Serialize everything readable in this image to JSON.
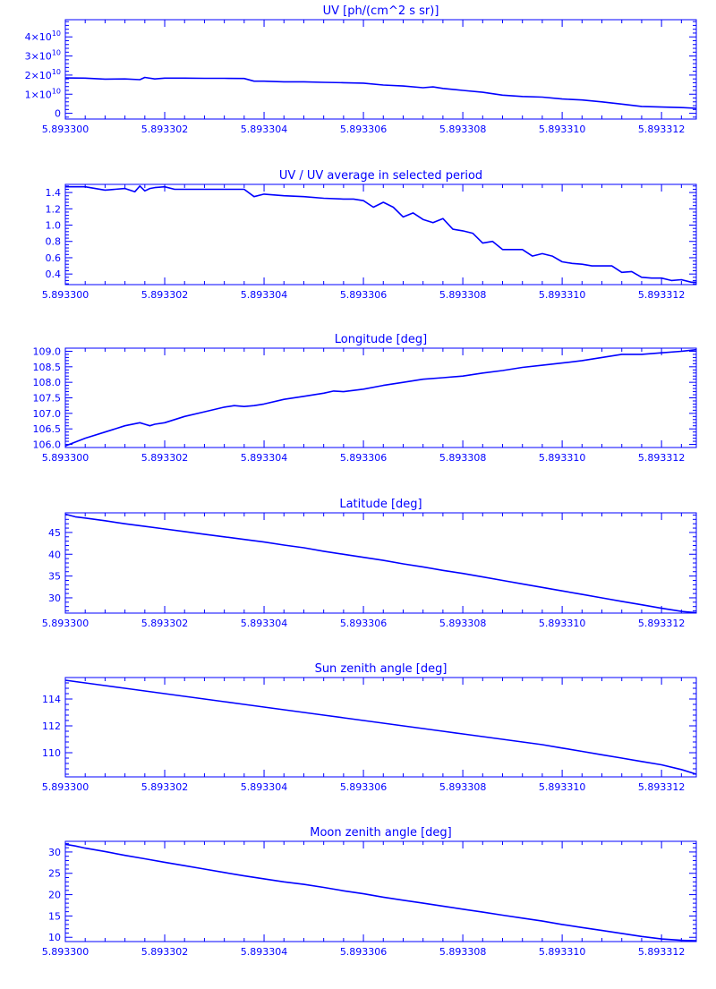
{
  "chart_data": [
    {
      "type": "line",
      "title": "UV [ph/(cm^2 s sr)]",
      "xlabel": "",
      "ylabel": "",
      "xlim": [
        5.8933,
        5.8933127
      ],
      "ylim": [
        -300000000,
        4900000000
      ],
      "x_ticks": [
        "5.893300",
        "5.893302",
        "5.893304",
        "5.893306",
        "5.893308",
        "5.893310",
        "5.893312"
      ],
      "y_ticks": [
        {
          "label_base": "0",
          "label_exp": "",
          "value": 0
        },
        {
          "label_base": "1×10",
          "label_exp": "10",
          "value": 1000000000
        },
        {
          "label_base": "2×10",
          "label_exp": "10",
          "value": 2000000000
        },
        {
          "label_base": "3×10",
          "label_exp": "10",
          "value": 3000000000
        },
        {
          "label_base": "4×10",
          "label_exp": "10",
          "value": 4000000000
        }
      ],
      "grid": false,
      "color": "#0000ff",
      "series": [
        {
          "x": [
            5.8933,
            5.8933004,
            5.8933008,
            5.8933012,
            5.8933015,
            5.8933016,
            5.8933018,
            5.893302,
            5.8933024,
            5.8933028,
            5.8933032,
            5.8933036,
            5.8933038,
            5.893304,
            5.8933044,
            5.8933048,
            5.8933052,
            5.8933056,
            5.893306,
            5.8933064,
            5.8933068,
            5.8933072,
            5.8933074,
            5.8933076,
            5.893308,
            5.8933084,
            5.8933088,
            5.8933092,
            5.8933096,
            5.89331,
            5.8933104,
            5.8933108,
            5.8933112,
            5.8933116,
            5.893312,
            5.8933124,
            5.8933127
          ],
          "y": [
            1850000000,
            1840000000,
            1790000000,
            1800000000,
            1760000000,
            1880000000,
            1800000000,
            1840000000,
            1840000000,
            1830000000,
            1830000000,
            1820000000,
            1680000000,
            1680000000,
            1650000000,
            1650000000,
            1620000000,
            1600000000,
            1580000000,
            1480000000,
            1430000000,
            1340000000,
            1380000000,
            1300000000,
            1200000000,
            1100000000,
            950000000,
            880000000,
            850000000,
            750000000,
            700000000,
            600000000,
            480000000,
            360000000,
            330000000,
            300000000,
            260000000
          ]
        }
      ]
    },
    {
      "type": "line",
      "title": "UV / UV average in selected period",
      "xlabel": "",
      "ylabel": "",
      "xlim": [
        5.8933,
        5.8933127
      ],
      "ylim": [
        0.27,
        1.5
      ],
      "x_ticks": [
        "5.893300",
        "5.893302",
        "5.893304",
        "5.893306",
        "5.893308",
        "5.893310",
        "5.893312"
      ],
      "y_ticks": [
        {
          "label_base": "0.4",
          "label_exp": "",
          "value": 0.4
        },
        {
          "label_base": "0.6",
          "label_exp": "",
          "value": 0.6
        },
        {
          "label_base": "0.8",
          "label_exp": "",
          "value": 0.8
        },
        {
          "label_base": "1.0",
          "label_exp": "",
          "value": 1.0
        },
        {
          "label_base": "1.2",
          "label_exp": "",
          "value": 1.2
        },
        {
          "label_base": "1.4",
          "label_exp": "",
          "value": 1.4
        }
      ],
      "grid": false,
      "color": "#0000ff",
      "series": [
        {
          "x": [
            5.8933,
            5.8933004,
            5.8933008,
            5.8933012,
            5.8933014,
            5.8933015,
            5.8933016,
            5.8933017,
            5.8933018,
            5.893302,
            5.8933022,
            5.8933024,
            5.8933028,
            5.8933032,
            5.8933036,
            5.8933038,
            5.893304,
            5.8933044,
            5.8933048,
            5.8933052,
            5.8933056,
            5.8933058,
            5.893306,
            5.8933062,
            5.8933064,
            5.8933066,
            5.8933068,
            5.893307,
            5.8933072,
            5.8933074,
            5.8933076,
            5.8933078,
            5.893308,
            5.8933082,
            5.8933084,
            5.8933086,
            5.8933088,
            5.893309,
            5.8933092,
            5.8933094,
            5.8933096,
            5.8933098,
            5.89331,
            5.8933102,
            5.8933104,
            5.8933106,
            5.8933108,
            5.893311,
            5.8933112,
            5.8933114,
            5.8933116,
            5.8933118,
            5.893312,
            5.8933122,
            5.8933124,
            5.8933126,
            5.8933127
          ],
          "y": [
            1.47,
            1.47,
            1.43,
            1.45,
            1.41,
            1.48,
            1.42,
            1.45,
            1.46,
            1.47,
            1.44,
            1.44,
            1.44,
            1.44,
            1.44,
            1.35,
            1.38,
            1.36,
            1.35,
            1.33,
            1.32,
            1.32,
            1.3,
            1.22,
            1.28,
            1.22,
            1.1,
            1.15,
            1.07,
            1.03,
            1.08,
            0.95,
            0.93,
            0.9,
            0.78,
            0.8,
            0.7,
            0.7,
            0.7,
            0.62,
            0.65,
            0.62,
            0.55,
            0.53,
            0.52,
            0.5,
            0.5,
            0.5,
            0.42,
            0.43,
            0.36,
            0.35,
            0.35,
            0.32,
            0.33,
            0.3,
            0.3
          ]
        }
      ]
    },
    {
      "type": "line",
      "title": "Longitude [deg]",
      "xlabel": "",
      "ylabel": "",
      "xlim": [
        5.8933,
        5.8933127
      ],
      "ylim": [
        105.9,
        109.1
      ],
      "x_ticks": [
        "5.893300",
        "5.893302",
        "5.893304",
        "5.893306",
        "5.893308",
        "5.893310",
        "5.893312"
      ],
      "y_ticks": [
        {
          "label_base": "106.0",
          "label_exp": "",
          "value": 106.0
        },
        {
          "label_base": "106.5",
          "label_exp": "",
          "value": 106.5
        },
        {
          "label_base": "107.0",
          "label_exp": "",
          "value": 107.0
        },
        {
          "label_base": "107.5",
          "label_exp": "",
          "value": 107.5
        },
        {
          "label_base": "108.0",
          "label_exp": "",
          "value": 108.0
        },
        {
          "label_base": "108.5",
          "label_exp": "",
          "value": 108.5
        },
        {
          "label_base": "109.0",
          "label_exp": "",
          "value": 109.0
        }
      ],
      "grid": false,
      "color": "#0000ff",
      "series": [
        {
          "x": [
            5.8933,
            5.8933004,
            5.8933008,
            5.8933012,
            5.8933015,
            5.8933016,
            5.8933017,
            5.8933018,
            5.893302,
            5.8933024,
            5.8933028,
            5.8933032,
            5.8933034,
            5.8933036,
            5.8933038,
            5.893304,
            5.8933044,
            5.8933048,
            5.8933052,
            5.8933054,
            5.8933056,
            5.893306,
            5.8933064,
            5.8933068,
            5.8933072,
            5.8933076,
            5.893308,
            5.8933084,
            5.8933088,
            5.8933092,
            5.8933096,
            5.89331,
            5.8933104,
            5.8933108,
            5.8933112,
            5.8933116,
            5.893312,
            5.8933124,
            5.8933127
          ],
          "y": [
            105.95,
            106.2,
            106.4,
            106.6,
            106.7,
            106.65,
            106.6,
            106.65,
            106.7,
            106.9,
            107.05,
            107.2,
            107.25,
            107.22,
            107.25,
            107.3,
            107.45,
            107.55,
            107.65,
            107.72,
            107.7,
            107.78,
            107.9,
            108.0,
            108.1,
            108.15,
            108.2,
            108.3,
            108.38,
            108.48,
            108.55,
            108.62,
            108.7,
            108.8,
            108.9,
            108.9,
            108.95,
            109.0,
            109.05
          ]
        }
      ]
    },
    {
      "type": "line",
      "title": "Latitude [deg]",
      "xlabel": "",
      "ylabel": "",
      "xlim": [
        5.8933,
        5.8933127
      ],
      "ylim": [
        26.5,
        49.5
      ],
      "x_ticks": [
        "5.893300",
        "5.893302",
        "5.893304",
        "5.893306",
        "5.893308",
        "5.893310",
        "5.893312"
      ],
      "y_ticks": [
        {
          "label_base": "30",
          "label_exp": "",
          "value": 30
        },
        {
          "label_base": "35",
          "label_exp": "",
          "value": 35
        },
        {
          "label_base": "40",
          "label_exp": "",
          "value": 40
        },
        {
          "label_base": "45",
          "label_exp": "",
          "value": 45
        }
      ],
      "grid": false,
      "color": "#0000ff",
      "series": [
        {
          "x": [
            5.8933,
            5.8933002,
            5.8933004,
            5.8933008,
            5.8933012,
            5.8933016,
            5.893302,
            5.8933024,
            5.8933028,
            5.8933032,
            5.8933036,
            5.893304,
            5.8933044,
            5.8933048,
            5.8933052,
            5.8933056,
            5.893306,
            5.8933064,
            5.8933068,
            5.8933072,
            5.8933076,
            5.893308,
            5.8933084,
            5.8933088,
            5.8933092,
            5.8933096,
            5.89331,
            5.8933104,
            5.8933108,
            5.8933112,
            5.8933116,
            5.893312,
            5.8933124,
            5.8933127
          ],
          "y": [
            49.2,
            48.6,
            48.3,
            47.7,
            47.0,
            46.4,
            45.8,
            45.2,
            44.6,
            44.0,
            43.4,
            42.8,
            42.1,
            41.5,
            40.7,
            40.0,
            39.3,
            38.6,
            37.8,
            37.1,
            36.3,
            35.6,
            34.8,
            34.0,
            33.2,
            32.4,
            31.6,
            30.8,
            30.0,
            29.2,
            28.4,
            27.6,
            26.9,
            26.6
          ]
        }
      ]
    },
    {
      "type": "line",
      "title": "Sun zenith angle [deg]",
      "xlabel": "",
      "ylabel": "",
      "xlim": [
        5.8933,
        5.8933127
      ],
      "ylim": [
        108.2,
        115.6
      ],
      "x_ticks": [
        "5.893300",
        "5.893302",
        "5.893304",
        "5.893306",
        "5.893308",
        "5.893310",
        "5.893312"
      ],
      "y_ticks": [
        {
          "label_base": "110",
          "label_exp": "",
          "value": 110
        },
        {
          "label_base": "112",
          "label_exp": "",
          "value": 112
        },
        {
          "label_base": "114",
          "label_exp": "",
          "value": 114
        }
      ],
      "grid": false,
      "color": "#0000ff",
      "series": [
        {
          "x": [
            5.8933,
            5.8933004,
            5.8933008,
            5.8933012,
            5.8933016,
            5.893302,
            5.8933024,
            5.8933028,
            5.8933032,
            5.8933036,
            5.893304,
            5.8933044,
            5.8933048,
            5.8933052,
            5.8933056,
            5.893306,
            5.8933064,
            5.8933068,
            5.8933072,
            5.8933076,
            5.893308,
            5.8933084,
            5.8933088,
            5.8933092,
            5.8933096,
            5.89331,
            5.8933104,
            5.8933108,
            5.8933112,
            5.8933116,
            5.893312,
            5.8933124,
            5.8933127
          ],
          "y": [
            115.4,
            115.2,
            115.0,
            114.8,
            114.6,
            114.4,
            114.2,
            114.0,
            113.8,
            113.6,
            113.4,
            113.2,
            113.0,
            112.8,
            112.6,
            112.4,
            112.2,
            112.0,
            111.8,
            111.6,
            111.4,
            111.2,
            111.0,
            110.8,
            110.6,
            110.35,
            110.1,
            109.85,
            109.6,
            109.35,
            109.1,
            108.75,
            108.4
          ]
        }
      ]
    },
    {
      "type": "line",
      "title": "Moon zenith angle [deg]",
      "xlabel": "",
      "ylabel": "",
      "xlim": [
        5.8933,
        5.8933127
      ],
      "ylim": [
        9,
        32.5
      ],
      "x_ticks": [
        "5.893300",
        "5.893302",
        "5.893304",
        "5.893306",
        "5.893308",
        "5.893310",
        "5.893312"
      ],
      "y_ticks": [
        {
          "label_base": "10",
          "label_exp": "",
          "value": 10
        },
        {
          "label_base": "15",
          "label_exp": "",
          "value": 15
        },
        {
          "label_base": "20",
          "label_exp": "",
          "value": 20
        },
        {
          "label_base": "25",
          "label_exp": "",
          "value": 25
        },
        {
          "label_base": "30",
          "label_exp": "",
          "value": 30
        }
      ],
      "grid": false,
      "color": "#0000ff",
      "series": [
        {
          "x": [
            5.8933,
            5.8933002,
            5.8933004,
            5.8933008,
            5.8933012,
            5.8933016,
            5.893302,
            5.8933024,
            5.8933028,
            5.8933032,
            5.8933036,
            5.893304,
            5.8933044,
            5.8933048,
            5.8933052,
            5.8933056,
            5.893306,
            5.8933064,
            5.8933068,
            5.8933072,
            5.8933076,
            5.893308,
            5.8933084,
            5.8933088,
            5.8933092,
            5.8933096,
            5.89331,
            5.8933104,
            5.8933108,
            5.8933112,
            5.8933116,
            5.893312,
            5.8933124,
            5.8933127
          ],
          "y": [
            31.8,
            31.4,
            30.9,
            30.1,
            29.2,
            28.4,
            27.6,
            26.8,
            26.0,
            25.2,
            24.4,
            23.7,
            23.0,
            22.4,
            21.7,
            20.9,
            20.2,
            19.4,
            18.7,
            18.0,
            17.3,
            16.6,
            15.9,
            15.2,
            14.5,
            13.8,
            13.0,
            12.3,
            11.6,
            10.9,
            10.2,
            9.6,
            9.3,
            9.2
          ]
        }
      ]
    }
  ]
}
